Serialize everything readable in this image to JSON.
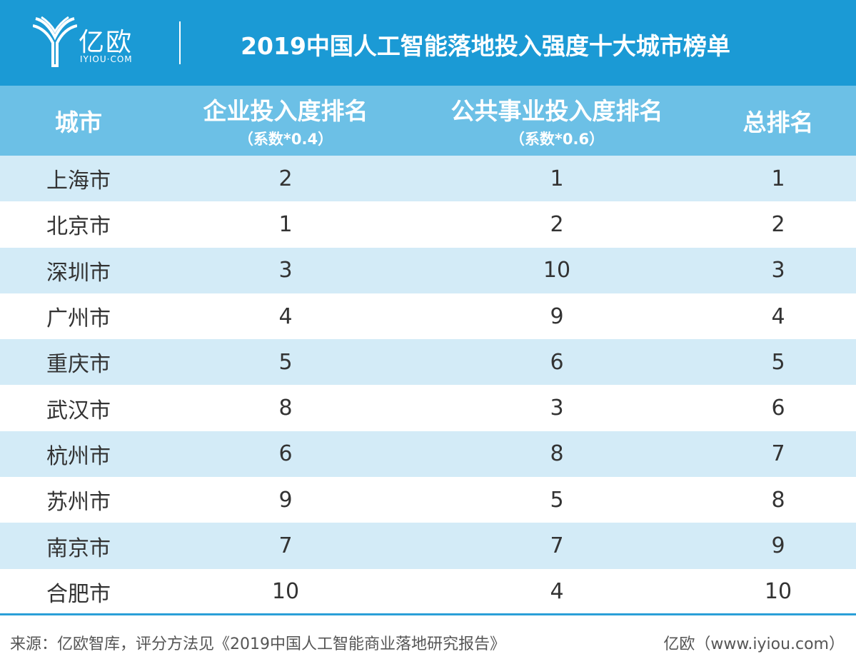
{
  "header": {
    "logo_text": "亿欧",
    "logo_sub": "IYIOU·COM",
    "title": "2019中国人工智能落地投入强度十大城市榜单"
  },
  "table": {
    "columns": [
      {
        "title": "城市"
      },
      {
        "title": "企业投入度排名",
        "subtitle": "（系数*0.4）"
      },
      {
        "title": "公共事业投入度排名",
        "subtitle": "（系数*0.6）"
      },
      {
        "title": "总排名"
      }
    ],
    "rows": [
      [
        "上海市",
        2,
        1,
        1
      ],
      [
        "北京市",
        1,
        2,
        2
      ],
      [
        "深圳市",
        3,
        10,
        3
      ],
      [
        "广州市",
        4,
        9,
        4
      ],
      [
        "重庆市",
        5,
        6,
        5
      ],
      [
        "武汉市",
        8,
        3,
        6
      ],
      [
        "杭州市",
        6,
        8,
        7
      ],
      [
        "苏州市",
        9,
        5,
        8
      ],
      [
        "南京市",
        7,
        7,
        9
      ],
      [
        "合肥市",
        10,
        4,
        10
      ]
    ]
  },
  "footer": {
    "source": "来源：亿欧智库，评分方法见《2019中国人工智能商业落地研究报告》",
    "site": "亿欧（www.iyiou.com）"
  }
}
